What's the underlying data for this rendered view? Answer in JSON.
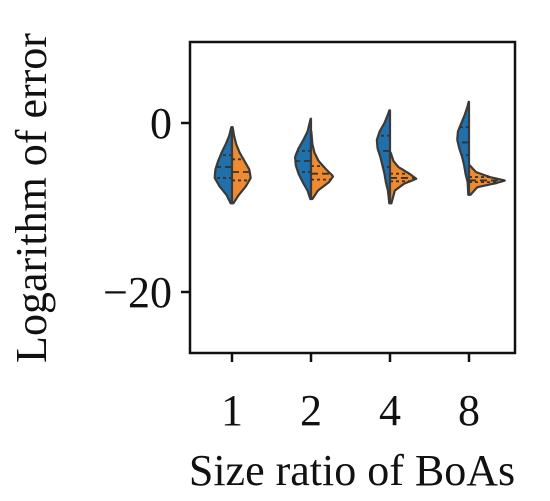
{
  "chart_data": {
    "type": "violin",
    "title": "",
    "xlabel": "Size ratio of BoAs",
    "ylabel": "Logarithm of error",
    "categories": [
      "1",
      "2",
      "4",
      "8"
    ],
    "ylim": [
      -27,
      10
    ],
    "yticks": [
      {
        "value": 0,
        "label": "0"
      },
      {
        "value": -20,
        "label": "−20"
      }
    ],
    "grid": false,
    "legend": "none",
    "split": true,
    "series": [
      {
        "side": "left",
        "color": "#2070ac",
        "violins": [
          {
            "category": "1",
            "min": -9.5,
            "max": -0.5,
            "q1": -6.5,
            "median": -5.2,
            "q3": -3.8,
            "profile": [
              [
                -9.5,
                0.02
              ],
              [
                -8.5,
                0.08
              ],
              [
                -7.5,
                0.18
              ],
              [
                -6.5,
                0.25
              ],
              [
                -5.5,
                0.24
              ],
              [
                -4.5,
                0.2
              ],
              [
                -3.5,
                0.15
              ],
              [
                -2.5,
                0.09
              ],
              [
                -1.5,
                0.04
              ],
              [
                -0.5,
                0.01
              ]
            ]
          },
          {
            "category": "2",
            "min": -9.0,
            "max": 0.5,
            "q1": -5.8,
            "median": -4.5,
            "q3": -3.3,
            "profile": [
              [
                -9,
                0.01
              ],
              [
                -8,
                0.05
              ],
              [
                -7,
                0.12
              ],
              [
                -6,
                0.18
              ],
              [
                -5,
                0.22
              ],
              [
                -4,
                0.23
              ],
              [
                -3,
                0.18
              ],
              [
                -2,
                0.11
              ],
              [
                -1,
                0.05
              ],
              [
                0,
                0.02
              ],
              [
                0.5,
                0.005
              ]
            ]
          },
          {
            "category": "4",
            "min": -9.5,
            "max": 1.5,
            "q1": -5.2,
            "median": -3.3,
            "q3": -1.5,
            "profile": [
              [
                -9.5,
                0.01
              ],
              [
                -8,
                0.03
              ],
              [
                -7,
                0.06
              ],
              [
                -6,
                0.08
              ],
              [
                -5,
                0.11
              ],
              [
                -4,
                0.14
              ],
              [
                -3,
                0.18
              ],
              [
                -2,
                0.19
              ],
              [
                -1,
                0.15
              ],
              [
                0,
                0.08
              ],
              [
                1,
                0.03
              ],
              [
                1.5,
                0.01
              ]
            ]
          },
          {
            "category": "8",
            "min": -8.5,
            "max": 2.5,
            "q1": -3.8,
            "median": -2.3,
            "q3": -0.5,
            "profile": [
              [
                -8.5,
                0.01
              ],
              [
                -7,
                0.02
              ],
              [
                -6,
                0.05
              ],
              [
                -5,
                0.07
              ],
              [
                -4,
                0.1
              ],
              [
                -3,
                0.14
              ],
              [
                -2,
                0.17
              ],
              [
                -1,
                0.16
              ],
              [
                0,
                0.11
              ],
              [
                1,
                0.06
              ],
              [
                2,
                0.02
              ],
              [
                2.5,
                0.005
              ]
            ]
          }
        ]
      },
      {
        "side": "right",
        "color": "#ef8a2f",
        "violins": [
          {
            "category": "1",
            "min": -9.5,
            "max": -0.5,
            "q1": -6.8,
            "median": -5.8,
            "q3": -4.3,
            "profile": [
              [
                -9.5,
                0.02
              ],
              [
                -8.5,
                0.1
              ],
              [
                -7.5,
                0.2
              ],
              [
                -6.5,
                0.27
              ],
              [
                -5.5,
                0.25
              ],
              [
                -4.5,
                0.18
              ],
              [
                -3.5,
                0.11
              ],
              [
                -2.5,
                0.06
              ],
              [
                -1.5,
                0.03
              ],
              [
                -0.5,
                0.01
              ]
            ]
          },
          {
            "category": "2",
            "min": -9.0,
            "max": -1.0,
            "q1": -6.7,
            "median": -6.0,
            "q3": -5.1,
            "profile": [
              [
                -9,
                0.02
              ],
              [
                -8,
                0.1
              ],
              [
                -7,
                0.26
              ],
              [
                -6.3,
                0.32
              ],
              [
                -5.5,
                0.22
              ],
              [
                -4.5,
                0.11
              ],
              [
                -3.5,
                0.05
              ],
              [
                -2.5,
                0.02
              ],
              [
                -1,
                0.005
              ]
            ]
          },
          {
            "category": "4",
            "min": -9.5,
            "max": -3.5,
            "q1": -6.9,
            "median": -6.5,
            "q3": -6.0,
            "profile": [
              [
                -9.5,
                0.02
              ],
              [
                -8,
                0.07
              ],
              [
                -7.2,
                0.2
              ],
              [
                -6.6,
                0.38
              ],
              [
                -6.0,
                0.28
              ],
              [
                -5.2,
                0.12
              ],
              [
                -4.5,
                0.05
              ],
              [
                -3.5,
                0.01
              ]
            ]
          },
          {
            "category": "8",
            "min": -8.5,
            "max": -5.0,
            "q1": -7.0,
            "median": -6.8,
            "q3": -6.4,
            "profile": [
              [
                -8.5,
                0.02
              ],
              [
                -7.6,
                0.12
              ],
              [
                -7.1,
                0.4
              ],
              [
                -6.8,
                0.52
              ],
              [
                -6.4,
                0.3
              ],
              [
                -5.8,
                0.1
              ],
              [
                -5.0,
                0.01
              ]
            ]
          }
        ]
      }
    ]
  }
}
